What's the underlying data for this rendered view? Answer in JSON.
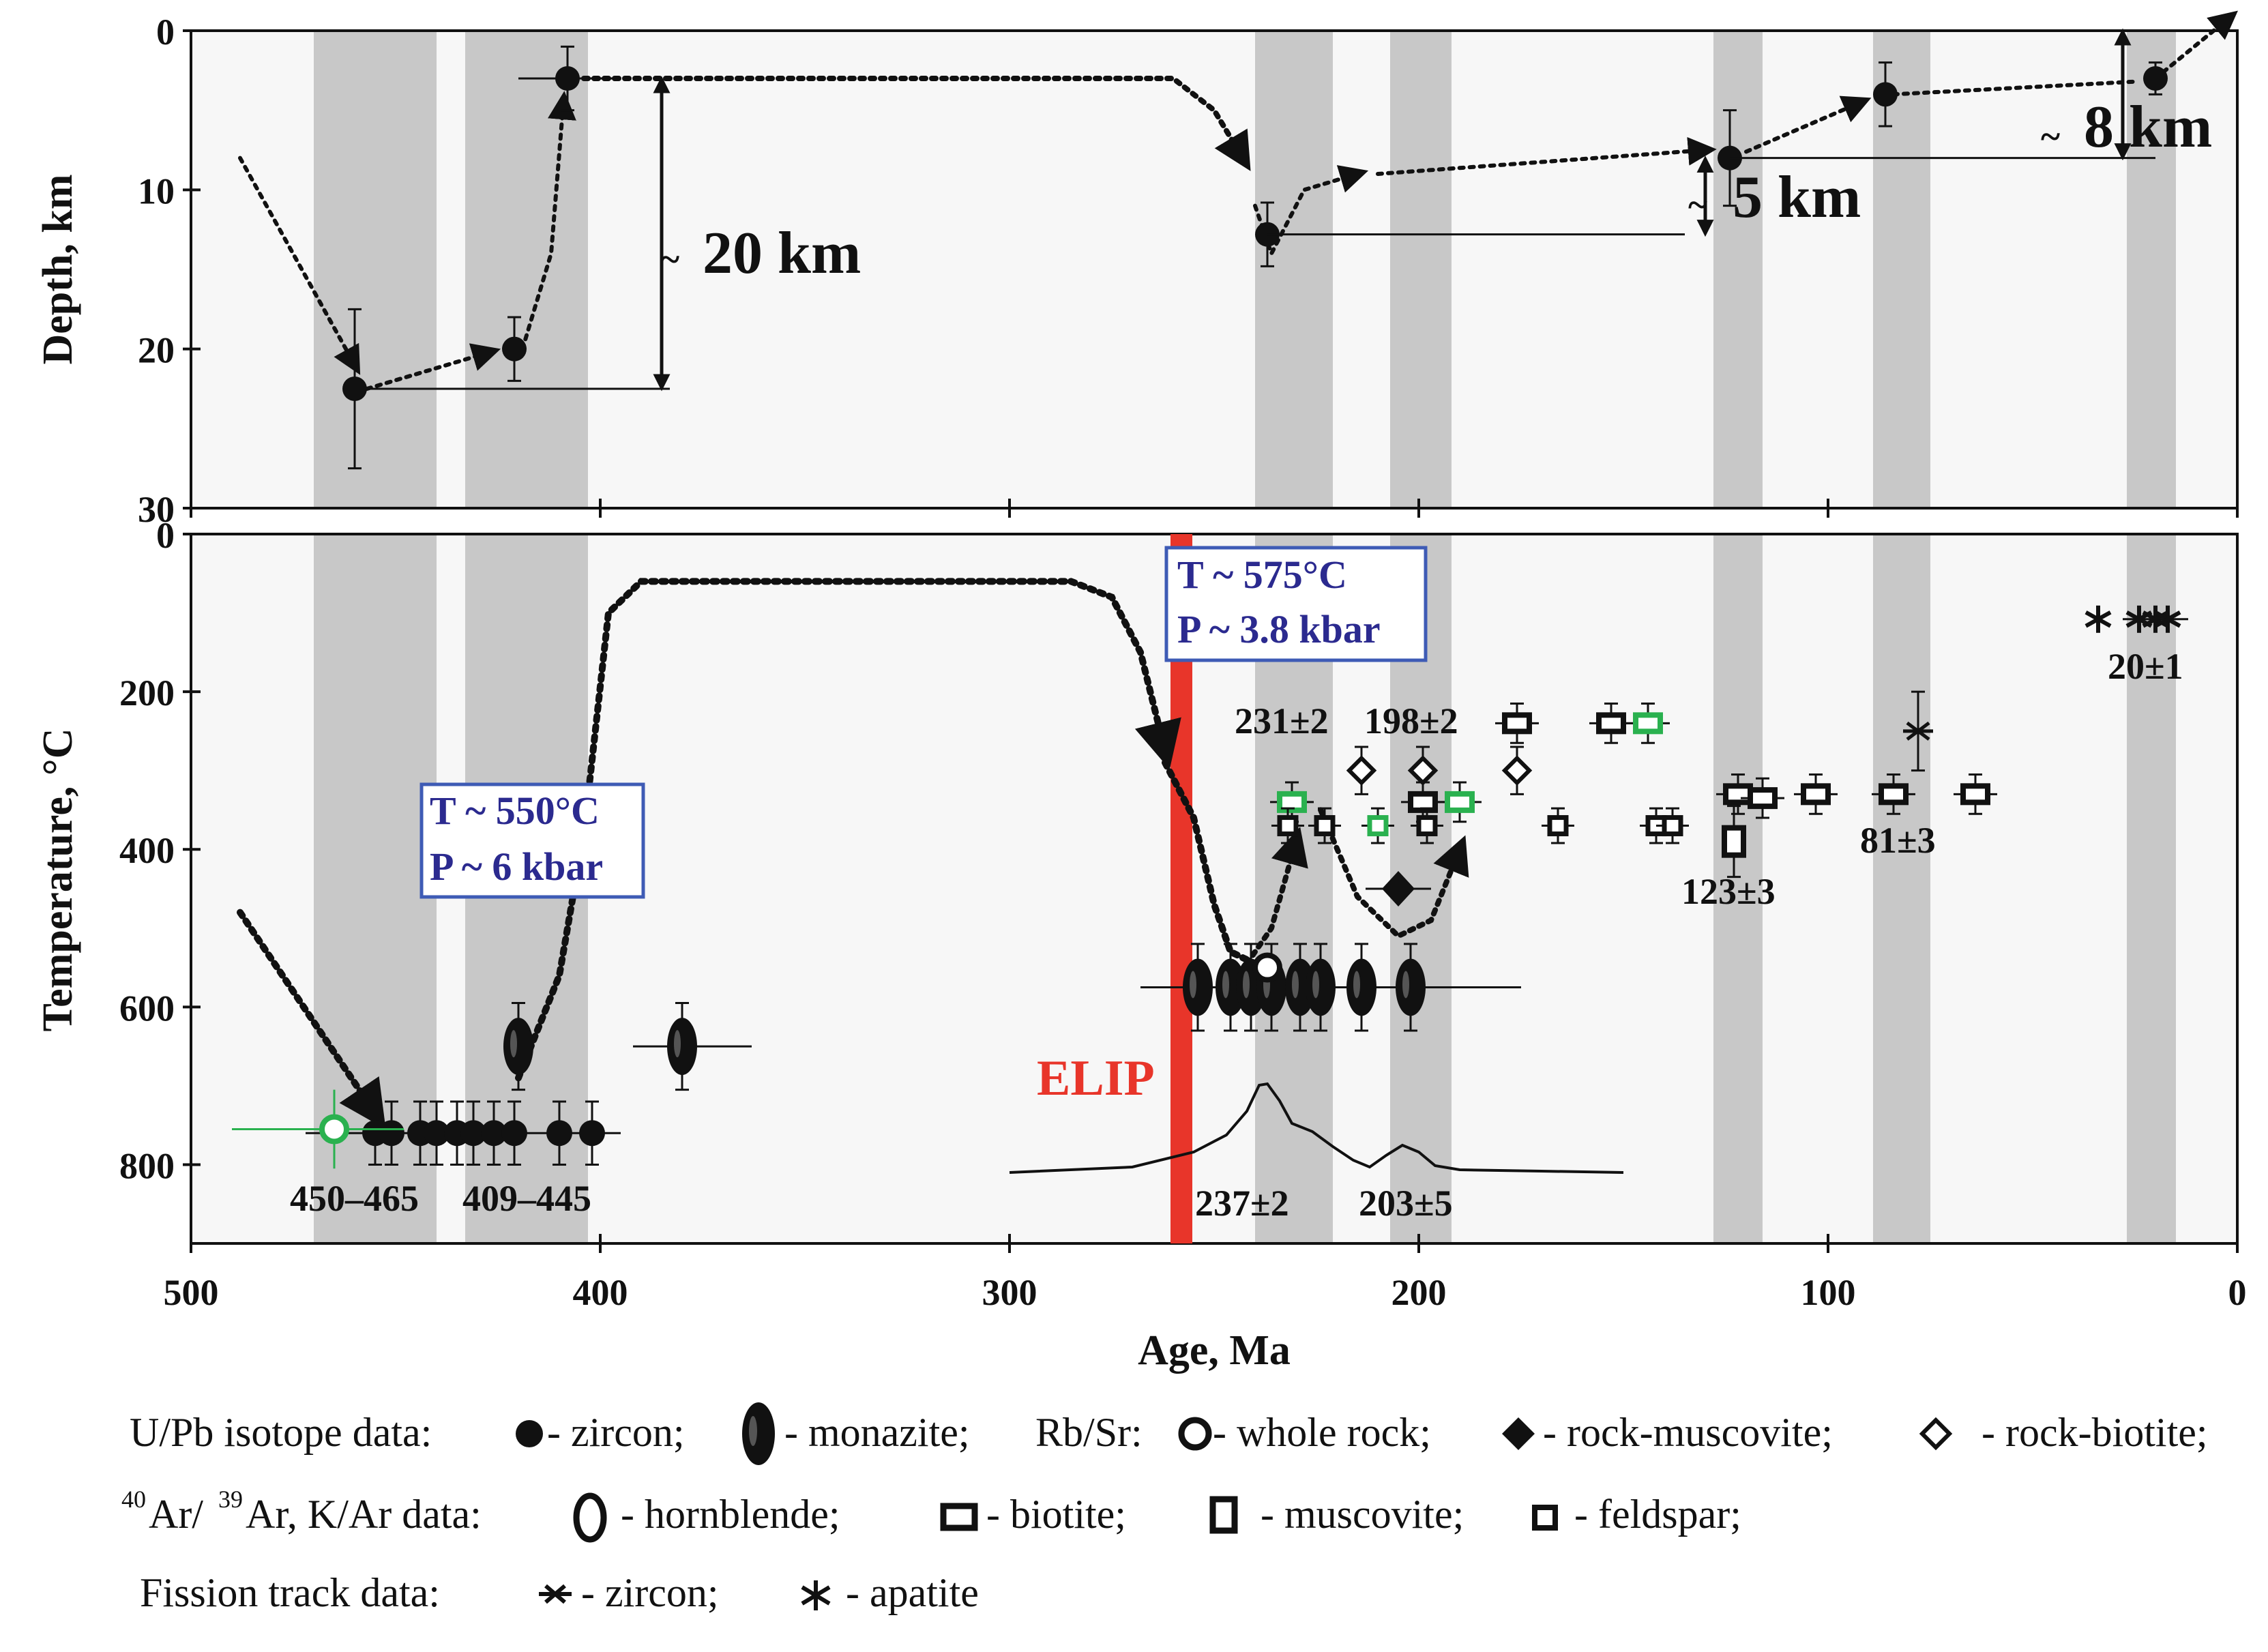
{
  "chart_data": {
    "type": "scatter",
    "x_axis": {
      "label": "Age, Ma",
      "range": [
        500,
        0
      ],
      "ticks": [
        "500",
        "400",
        "300",
        "200",
        "100",
        "0"
      ]
    },
    "shaded_bands_ma": [
      [
        470,
        440
      ],
      [
        433,
        403
      ],
      [
        240,
        221
      ],
      [
        207,
        192
      ],
      [
        128,
        116
      ],
      [
        89,
        75
      ],
      [
        27,
        15
      ]
    ],
    "depth_panel": {
      "ylabel": "Depth, km",
      "ylim": [
        0,
        30
      ],
      "y_ticks": [
        "0",
        "10",
        "20",
        "30"
      ],
      "points": [
        {
          "age": 460,
          "depth": 22.5,
          "err": 5
        },
        {
          "age": 421,
          "depth": 20,
          "err": 2
        },
        {
          "age": 408,
          "depth": 3,
          "err": 2
        },
        {
          "age": 237,
          "depth": 12.8,
          "err": 2
        },
        {
          "age": 124,
          "depth": 8,
          "err": 3
        },
        {
          "age": 86,
          "depth": 4,
          "err": 2
        },
        {
          "age": 20,
          "depth": 3,
          "err": 1
        }
      ],
      "annotations": [
        {
          "text": "20 km",
          "prefix": "~",
          "from_depth": 3,
          "to_depth": 22.5,
          "at_age": 385
        },
        {
          "text": "5 km",
          "prefix": "~",
          "from_depth": 8,
          "to_depth": 12.8,
          "at_age": 130
        },
        {
          "text": "8 km",
          "prefix": "~",
          "from_depth": 0,
          "to_depth": 8,
          "at_age": 28
        }
      ]
    },
    "temperature_panel": {
      "ylabel": "Temperature, °C",
      "ylim": [
        0,
        900
      ],
      "y_ticks": [
        "0",
        "200",
        "400",
        "600",
        "800"
      ],
      "pt_conditions": [
        {
          "T": "T ~ 550°C",
          "P": "P ~ 6 kbar"
        },
        {
          "T": "T ~ 575°C",
          "P": "P ~ 3.8 kbar"
        }
      ],
      "elip": {
        "label": "ELIP",
        "age": 258
      },
      "age_labels": [
        "450–465",
        "409–445",
        "237±2",
        "203±5",
        "231±2",
        "198±2",
        "123±3",
        "81±3",
        "20±1"
      ],
      "zircon_UPb": [
        {
          "age": 455,
          "T": 760
        },
        {
          "age": 451,
          "T": 760
        },
        {
          "age": 444,
          "T": 760
        },
        {
          "age": 440,
          "T": 760
        },
        {
          "age": 435,
          "T": 760
        },
        {
          "age": 431,
          "T": 760
        },
        {
          "age": 426,
          "T": 760
        },
        {
          "age": 421,
          "T": 760
        },
        {
          "age": 410,
          "T": 760
        },
        {
          "age": 402,
          "T": 760
        }
      ],
      "monazite_UPb": [
        {
          "age": 420,
          "T": 650
        },
        {
          "age": 380,
          "T": 650
        },
        {
          "age": 254,
          "T": 575
        },
        {
          "age": 246,
          "T": 575
        },
        {
          "age": 241,
          "T": 575
        },
        {
          "age": 236,
          "T": 575
        },
        {
          "age": 229,
          "T": 575
        },
        {
          "age": 224,
          "T": 575
        },
        {
          "age": 214,
          "T": 575
        },
        {
          "age": 202,
          "T": 575
        }
      ],
      "whole_rock_RbSr": [
        {
          "age": 465,
          "T": 755
        },
        {
          "age": 237,
          "T": 550
        }
      ],
      "rock_muscovite_RbSr": [
        {
          "age": 205,
          "T": 450
        }
      ],
      "rock_biotite_RbSr": [
        {
          "age": 214,
          "T": 300
        },
        {
          "age": 199,
          "T": 300
        },
        {
          "age": 176,
          "T": 300
        }
      ],
      "biotite_ArAr": [
        {
          "age": 231,
          "T": 340
        },
        {
          "age": 199,
          "T": 340
        },
        {
          "age": 190,
          "T": 340
        },
        {
          "age": 176,
          "T": 240
        },
        {
          "age": 153,
          "T": 240
        },
        {
          "age": 144,
          "T": 240
        },
        {
          "age": 122,
          "T": 330
        },
        {
          "age": 116,
          "T": 335
        },
        {
          "age": 103,
          "T": 330
        },
        {
          "age": 84,
          "T": 330
        },
        {
          "age": 64,
          "T": 330
        }
      ],
      "muscovite_ArAr": [
        {
          "age": 123,
          "T": 390
        }
      ],
      "feldspar_ArAr": [
        {
          "age": 232,
          "T": 370
        },
        {
          "age": 223,
          "T": 370
        },
        {
          "age": 210,
          "T": 370
        },
        {
          "age": 198,
          "T": 370
        },
        {
          "age": 166,
          "T": 370
        },
        {
          "age": 142,
          "T": 370
        },
        {
          "age": 138,
          "T": 370
        }
      ],
      "zircon_FT": [
        {
          "age": 78,
          "T": 250
        }
      ],
      "apatite_FT": [
        {
          "age": 34,
          "T": 108
        },
        {
          "age": 24,
          "T": 108
        },
        {
          "age": 20,
          "T": 108
        },
        {
          "age": 17,
          "T": 108
        }
      ]
    },
    "legend": {
      "line1": {
        "upb": "U/Pb isotope data:",
        "zircon": "- zircon;",
        "monazite": "- monazite;",
        "rbsr": "Rb/Sr:",
        "whole_rock": "- whole rock;",
        "rock_muscovite": "- rock-muscovite;",
        "rock_biotite": "- rock-biotite;"
      },
      "line2": {
        "ar_prefix": "Ar/",
        "ar_suffix": "Ar, K/Ar data:",
        "sup40": "40",
        "sup39": "39",
        "hornblende": "- hornblende;",
        "biotite": "- biotite;",
        "muscovite": "- muscovite;",
        "feldspar": "- feldspar;"
      },
      "line3": {
        "ft": "Fission track data:",
        "zircon": "- zircon;",
        "apatite": "- apatite"
      }
    },
    "colors": {
      "band": "#c8c8c8",
      "panel_bg": "#f7f7f7",
      "green": "#2ab14f",
      "elip_red": "#e8352a",
      "box_border": "#3e5bb5",
      "box_text": "#2b2a8f"
    }
  }
}
